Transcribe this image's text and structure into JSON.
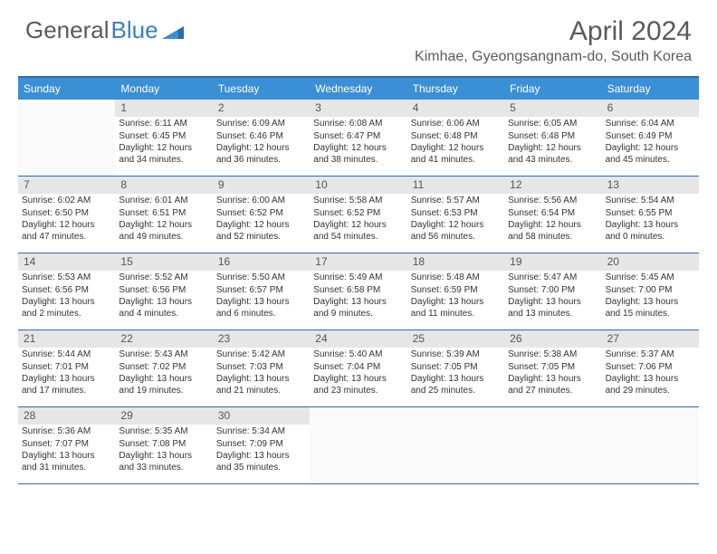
{
  "logo": {
    "text1": "General",
    "text2": "Blue"
  },
  "title": "April 2024",
  "location": "Kimhae, Gyeongsangnam-do, South Korea",
  "colors": {
    "header_bg": "#3b8fd4",
    "header_text": "#ffffff",
    "border": "#2e6ca8",
    "daynum_bg": "#e6e6e6",
    "logo_gray": "#5a5a5a",
    "logo_blue": "#3b7fc4"
  },
  "weekdays": [
    "Sunday",
    "Monday",
    "Tuesday",
    "Wednesday",
    "Thursday",
    "Friday",
    "Saturday"
  ],
  "weeks": [
    [
      null,
      {
        "n": "1",
        "sr": "Sunrise: 6:11 AM",
        "ss": "Sunset: 6:45 PM",
        "dl": "Daylight: 12 hours and 34 minutes."
      },
      {
        "n": "2",
        "sr": "Sunrise: 6:09 AM",
        "ss": "Sunset: 6:46 PM",
        "dl": "Daylight: 12 hours and 36 minutes."
      },
      {
        "n": "3",
        "sr": "Sunrise: 6:08 AM",
        "ss": "Sunset: 6:47 PM",
        "dl": "Daylight: 12 hours and 38 minutes."
      },
      {
        "n": "4",
        "sr": "Sunrise: 6:06 AM",
        "ss": "Sunset: 6:48 PM",
        "dl": "Daylight: 12 hours and 41 minutes."
      },
      {
        "n": "5",
        "sr": "Sunrise: 6:05 AM",
        "ss": "Sunset: 6:48 PM",
        "dl": "Daylight: 12 hours and 43 minutes."
      },
      {
        "n": "6",
        "sr": "Sunrise: 6:04 AM",
        "ss": "Sunset: 6:49 PM",
        "dl": "Daylight: 12 hours and 45 minutes."
      }
    ],
    [
      {
        "n": "7",
        "sr": "Sunrise: 6:02 AM",
        "ss": "Sunset: 6:50 PM",
        "dl": "Daylight: 12 hours and 47 minutes."
      },
      {
        "n": "8",
        "sr": "Sunrise: 6:01 AM",
        "ss": "Sunset: 6:51 PM",
        "dl": "Daylight: 12 hours and 49 minutes."
      },
      {
        "n": "9",
        "sr": "Sunrise: 6:00 AM",
        "ss": "Sunset: 6:52 PM",
        "dl": "Daylight: 12 hours and 52 minutes."
      },
      {
        "n": "10",
        "sr": "Sunrise: 5:58 AM",
        "ss": "Sunset: 6:52 PM",
        "dl": "Daylight: 12 hours and 54 minutes."
      },
      {
        "n": "11",
        "sr": "Sunrise: 5:57 AM",
        "ss": "Sunset: 6:53 PM",
        "dl": "Daylight: 12 hours and 56 minutes."
      },
      {
        "n": "12",
        "sr": "Sunrise: 5:56 AM",
        "ss": "Sunset: 6:54 PM",
        "dl": "Daylight: 12 hours and 58 minutes."
      },
      {
        "n": "13",
        "sr": "Sunrise: 5:54 AM",
        "ss": "Sunset: 6:55 PM",
        "dl": "Daylight: 13 hours and 0 minutes."
      }
    ],
    [
      {
        "n": "14",
        "sr": "Sunrise: 5:53 AM",
        "ss": "Sunset: 6:56 PM",
        "dl": "Daylight: 13 hours and 2 minutes."
      },
      {
        "n": "15",
        "sr": "Sunrise: 5:52 AM",
        "ss": "Sunset: 6:56 PM",
        "dl": "Daylight: 13 hours and 4 minutes."
      },
      {
        "n": "16",
        "sr": "Sunrise: 5:50 AM",
        "ss": "Sunset: 6:57 PM",
        "dl": "Daylight: 13 hours and 6 minutes."
      },
      {
        "n": "17",
        "sr": "Sunrise: 5:49 AM",
        "ss": "Sunset: 6:58 PM",
        "dl": "Daylight: 13 hours and 9 minutes."
      },
      {
        "n": "18",
        "sr": "Sunrise: 5:48 AM",
        "ss": "Sunset: 6:59 PM",
        "dl": "Daylight: 13 hours and 11 minutes."
      },
      {
        "n": "19",
        "sr": "Sunrise: 5:47 AM",
        "ss": "Sunset: 7:00 PM",
        "dl": "Daylight: 13 hours and 13 minutes."
      },
      {
        "n": "20",
        "sr": "Sunrise: 5:45 AM",
        "ss": "Sunset: 7:00 PM",
        "dl": "Daylight: 13 hours and 15 minutes."
      }
    ],
    [
      {
        "n": "21",
        "sr": "Sunrise: 5:44 AM",
        "ss": "Sunset: 7:01 PM",
        "dl": "Daylight: 13 hours and 17 minutes."
      },
      {
        "n": "22",
        "sr": "Sunrise: 5:43 AM",
        "ss": "Sunset: 7:02 PM",
        "dl": "Daylight: 13 hours and 19 minutes."
      },
      {
        "n": "23",
        "sr": "Sunrise: 5:42 AM",
        "ss": "Sunset: 7:03 PM",
        "dl": "Daylight: 13 hours and 21 minutes."
      },
      {
        "n": "24",
        "sr": "Sunrise: 5:40 AM",
        "ss": "Sunset: 7:04 PM",
        "dl": "Daylight: 13 hours and 23 minutes."
      },
      {
        "n": "25",
        "sr": "Sunrise: 5:39 AM",
        "ss": "Sunset: 7:05 PM",
        "dl": "Daylight: 13 hours and 25 minutes."
      },
      {
        "n": "26",
        "sr": "Sunrise: 5:38 AM",
        "ss": "Sunset: 7:05 PM",
        "dl": "Daylight: 13 hours and 27 minutes."
      },
      {
        "n": "27",
        "sr": "Sunrise: 5:37 AM",
        "ss": "Sunset: 7:06 PM",
        "dl": "Daylight: 13 hours and 29 minutes."
      }
    ],
    [
      {
        "n": "28",
        "sr": "Sunrise: 5:36 AM",
        "ss": "Sunset: 7:07 PM",
        "dl": "Daylight: 13 hours and 31 minutes."
      },
      {
        "n": "29",
        "sr": "Sunrise: 5:35 AM",
        "ss": "Sunset: 7:08 PM",
        "dl": "Daylight: 13 hours and 33 minutes."
      },
      {
        "n": "30",
        "sr": "Sunrise: 5:34 AM",
        "ss": "Sunset: 7:09 PM",
        "dl": "Daylight: 13 hours and 35 minutes."
      },
      null,
      null,
      null,
      null
    ]
  ]
}
